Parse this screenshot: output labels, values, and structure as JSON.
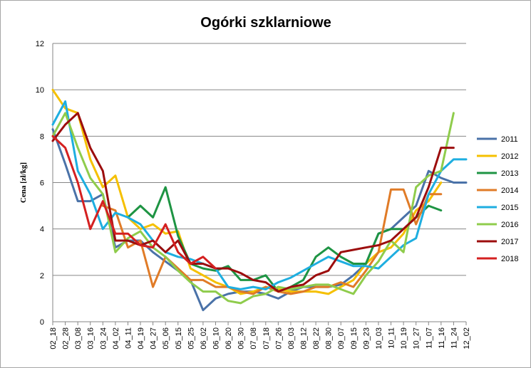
{
  "chart_data": {
    "type": "line",
    "title": "Ogórki szklarniowe",
    "xlabel": "",
    "ylabel": "Cena [zł/kg]",
    "ylim": [
      0,
      12
    ],
    "yticks": [
      0,
      2,
      4,
      6,
      8,
      10,
      12
    ],
    "grid": true,
    "legend_position": "right",
    "categories": [
      "02_18",
      "02_28",
      "03_08",
      "03_16",
      "03_24",
      "04_02",
      "04_11",
      "04_19",
      "04_27",
      "05_06",
      "05_15",
      "05_25",
      "06_02",
      "06_10",
      "06_20",
      "06_30",
      "07_08",
      "07_18",
      "07_26",
      "08_03",
      "08_12",
      "08_22",
      "08_30",
      "09_07",
      "09_15",
      "09_23",
      "10_03",
      "10_11",
      "10_19",
      "10_27",
      "11_07",
      "11_16",
      "11_24",
      "12_02"
    ],
    "series": [
      {
        "name": "2011",
        "color": "#4a72a8",
        "values": [
          8.3,
          6.8,
          5.2,
          5.2,
          5.5,
          3.2,
          3.5,
          3.5,
          3.0,
          2.6,
          2.2,
          1.8,
          0.5,
          1.0,
          1.2,
          1.3,
          1.3,
          1.2,
          1.0,
          1.3,
          1.5,
          1.5,
          1.5,
          1.6,
          2.0,
          2.5,
          3.8,
          4.0,
          4.5,
          5.0,
          6.5,
          6.2,
          6.0,
          6.0
        ]
      },
      {
        "name": "2012",
        "color": "#f5c000",
        "values": [
          10.0,
          9.2,
          9.0,
          7.0,
          5.8,
          6.3,
          4.5,
          4.0,
          4.2,
          3.8,
          3.9,
          2.3,
          2.0,
          1.7,
          1.5,
          1.2,
          1.3,
          1.5,
          1.4,
          1.3,
          1.3,
          1.3,
          1.2,
          1.5,
          1.8,
          2.5,
          3.0,
          3.2,
          3.8,
          4.8,
          5.2,
          6.0,
          null,
          null
        ]
      },
      {
        "name": "2013",
        "color": "#1e9443",
        "values": [
          null,
          null,
          null,
          null,
          null,
          null,
          4.5,
          5.0,
          4.5,
          5.8,
          3.7,
          2.5,
          2.3,
          2.2,
          2.4,
          1.8,
          1.8,
          2.0,
          1.3,
          1.5,
          1.8,
          2.8,
          3.2,
          2.8,
          2.5,
          2.5,
          3.8,
          4.0,
          4.0,
          4.5,
          5.0,
          4.8,
          null,
          null
        ]
      },
      {
        "name": "2014",
        "color": "#e07b27",
        "values": [
          null,
          null,
          null,
          null,
          5.0,
          4.8,
          3.2,
          3.5,
          1.5,
          2.8,
          2.3,
          1.8,
          1.8,
          1.5,
          1.5,
          1.3,
          1.2,
          1.5,
          1.3,
          1.2,
          1.3,
          1.5,
          1.5,
          1.7,
          1.5,
          2.2,
          3.0,
          5.7,
          5.7,
          4.2,
          5.5,
          5.5,
          null,
          null
        ]
      },
      {
        "name": "2015",
        "color": "#1eaee0",
        "values": [
          8.5,
          9.5,
          6.5,
          5.5,
          4.0,
          4.7,
          4.5,
          4.2,
          3.5,
          3.0,
          2.8,
          2.7,
          2.5,
          2.3,
          1.5,
          1.4,
          1.5,
          1.4,
          1.7,
          1.9,
          2.2,
          2.5,
          2.8,
          2.6,
          2.4,
          2.4,
          2.3,
          2.8,
          3.3,
          3.6,
          5.5,
          6.5,
          7.0,
          7.0
        ]
      },
      {
        "name": "2016",
        "color": "#8fcc4c",
        "values": [
          8.0,
          9.0,
          7.5,
          6.2,
          5.5,
          3.0,
          3.6,
          3.9,
          3.2,
          2.8,
          2.2,
          1.7,
          1.3,
          1.3,
          0.9,
          0.8,
          1.1,
          1.2,
          1.5,
          1.4,
          1.5,
          1.6,
          1.6,
          1.4,
          1.2,
          2.0,
          2.6,
          3.5,
          3.0,
          5.8,
          6.3,
          6.5,
          9.0,
          null
        ]
      },
      {
        "name": "2017",
        "color": "#9c0d0d",
        "values": [
          7.8,
          8.5,
          9.0,
          7.5,
          6.5,
          3.5,
          3.5,
          3.3,
          3.5,
          3.0,
          3.5,
          2.5,
          2.5,
          2.3,
          2.3,
          2.1,
          1.8,
          1.7,
          1.3,
          1.5,
          1.6,
          2.0,
          2.2,
          3.0,
          3.1,
          3.2,
          3.3,
          3.5,
          4.0,
          4.5,
          5.8,
          7.5,
          7.5,
          null
        ]
      },
      {
        "name": "2018",
        "color": "#d42020",
        "values": [
          8.0,
          7.5,
          6.0,
          4.0,
          5.2,
          3.8,
          3.8,
          3.3,
          3.2,
          4.2,
          3.0,
          2.5,
          2.8,
          2.3,
          null,
          null,
          null,
          null,
          null,
          null,
          null,
          null,
          null,
          null,
          null,
          null,
          null,
          null,
          null,
          null,
          null,
          null,
          null,
          null
        ]
      }
    ]
  }
}
